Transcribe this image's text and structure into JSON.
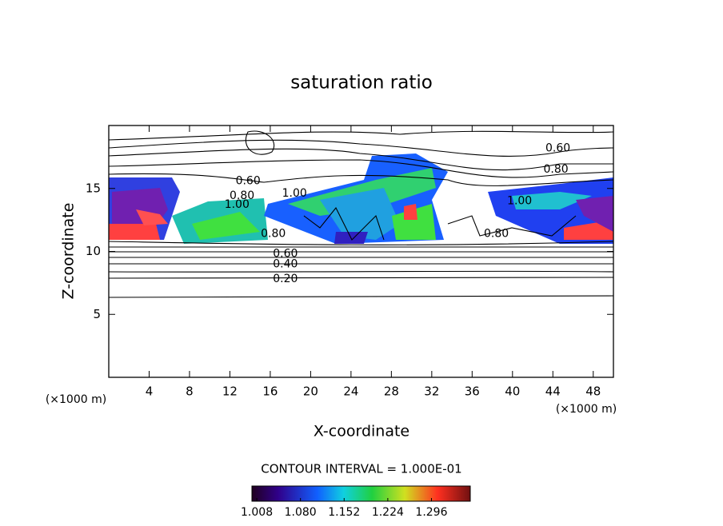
{
  "chart_data": {
    "type": "contour",
    "title": "saturation ratio",
    "xlabel": "X-coordinate",
    "ylabel": "Z-coordinate",
    "x_unit": "(×1000 m)",
    "y_unit": "(×1000 m)",
    "xlim": [
      0,
      50
    ],
    "xticks": [
      4,
      8,
      12,
      16,
      20,
      24,
      28,
      32,
      36,
      40,
      44,
      48
    ],
    "ylim": [
      0,
      20
    ],
    "yticks": [
      5,
      10,
      15
    ],
    "contour_interval": "CONTOUR INTERVAL = 1.000E-01",
    "clim": [
      1.0,
      1.36
    ],
    "cticks": [
      1.008,
      {
        "value": 1.08,
        "label": "1.080"
      },
      1.152,
      1.224,
      1.296
    ],
    "contour_labels": [
      {
        "text": "0.60",
        "x": 44.5,
        "y": 18.2
      },
      {
        "text": "0.80",
        "x": 44.3,
        "y": 16.5
      },
      {
        "text": "0.60",
        "x": 13.8,
        "y": 15.6
      },
      {
        "text": "0.80",
        "x": 13.2,
        "y": 14.4
      },
      {
        "text": "1.00",
        "x": 12.7,
        "y": 13.7
      },
      {
        "text": "1.00",
        "x": 18.4,
        "y": 14.6
      },
      {
        "text": "1.00",
        "x": 40.7,
        "y": 14.0
      },
      {
        "text": "0.80",
        "x": 16.3,
        "y": 11.4
      },
      {
        "text": "0.80",
        "x": 38.4,
        "y": 11.4
      },
      {
        "text": "0.60",
        "x": 17.5,
        "y": 9.8
      },
      {
        "text": "0.40",
        "x": 17.5,
        "y": 9.0
      },
      {
        "text": "0.20",
        "x": 17.5,
        "y": 7.8
      }
    ]
  }
}
